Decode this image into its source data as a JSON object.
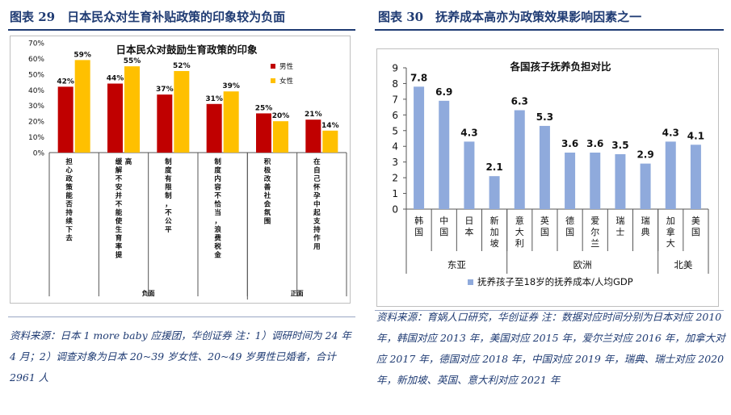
{
  "left": {
    "figure_title": "图表 29　日本民众对生育补贴政策的印象较为负面",
    "source": "资料来源：日本 1 more baby 应援团，华创证券  注：1）调研时间为 24 年 4 月；2）调查对象为日本 20~39 岁女性、20~49 岁男性已婚者，合计 2961 人"
  },
  "right": {
    "figure_title": "图表 30　抚养成本高亦为政策效果影响因素之一",
    "source": "资料来源：育娲人口研究，华创证券  注：数据对应时间分别为日本对应 2010 年，韩国对应 2013 年，美国对应 2015 年，爱尔兰对应 2016 年，加拿大对应 2017 年，德国对应 2018 年，中国对应 2019 年，瑞典、瑞士对应 2020 年，新加坡、英国、意大利对应 2021 年"
  },
  "chart_data": [
    {
      "type": "bar",
      "title": "日本民众对鼓励生育政策的印象",
      "categories": [
        "担心政策能否持续下去",
        "缓解不安并不能使生育率提高",
        "制度有限制，不公平",
        "制度内容不恰当，浪费税金",
        "积极改善社会氛围",
        "在自己怀孕中起支持作用"
      ],
      "series": [
        {
          "name": "男性",
          "values": [
            42,
            44,
            37,
            31,
            25,
            21
          ],
          "color": "#c00000"
        },
        {
          "name": "女性",
          "values": [
            59,
            55,
            52,
            39,
            20,
            14
          ],
          "color": "#ffc000"
        }
      ],
      "value_labels": {
        "男性": [
          "42%",
          "44%",
          "37%",
          "31%",
          "25%",
          "21%"
        ],
        "女性": [
          "59%",
          "55%",
          "52%",
          "39%",
          "20%",
          "14%"
        ]
      },
      "y_ticks": [
        "0%",
        "10%",
        "20%",
        "30%",
        "40%",
        "50%",
        "60%",
        "70%"
      ],
      "ylim": [
        0,
        70
      ],
      "groups": [
        {
          "label": "负面",
          "categories": [
            0,
            1,
            2,
            3
          ]
        },
        {
          "label": "正面",
          "categories": [
            4,
            5
          ]
        }
      ],
      "legend": "top-right",
      "grid": false
    },
    {
      "type": "bar",
      "title": "各国孩子抚养负担对比",
      "categories": [
        "韩国",
        "中国",
        "日本",
        "新加坡",
        "意大利",
        "英国",
        "德国",
        "爱尔兰",
        "瑞士",
        "瑞典",
        "加拿大",
        "美国"
      ],
      "series": [
        {
          "name": "抚养孩子至18岁的抚养成本/人均GDP",
          "values": [
            7.8,
            6.9,
            4.3,
            2.1,
            6.3,
            5.3,
            3.6,
            3.6,
            3.5,
            2.9,
            4.3,
            4.1
          ],
          "color": "#8faadc"
        }
      ],
      "value_labels": [
        "7.8",
        "6.9",
        "4.3",
        "2.1",
        "6.3",
        "5.3",
        "3.6",
        "3.6",
        "3.5",
        "2.9",
        "4.3",
        "4.1"
      ],
      "y_ticks": [
        "0",
        "1",
        "2",
        "3",
        "4",
        "5",
        "6",
        "7",
        "8",
        "9"
      ],
      "ylim": [
        0,
        9
      ],
      "groups": [
        {
          "label": "东亚",
          "categories": [
            0,
            1,
            2,
            3
          ]
        },
        {
          "label": "欧洲",
          "categories": [
            4,
            5,
            6,
            7,
            8,
            9
          ]
        },
        {
          "label": "北美",
          "categories": [
            10,
            11
          ]
        }
      ],
      "legend": "bottom",
      "grid": false
    }
  ]
}
